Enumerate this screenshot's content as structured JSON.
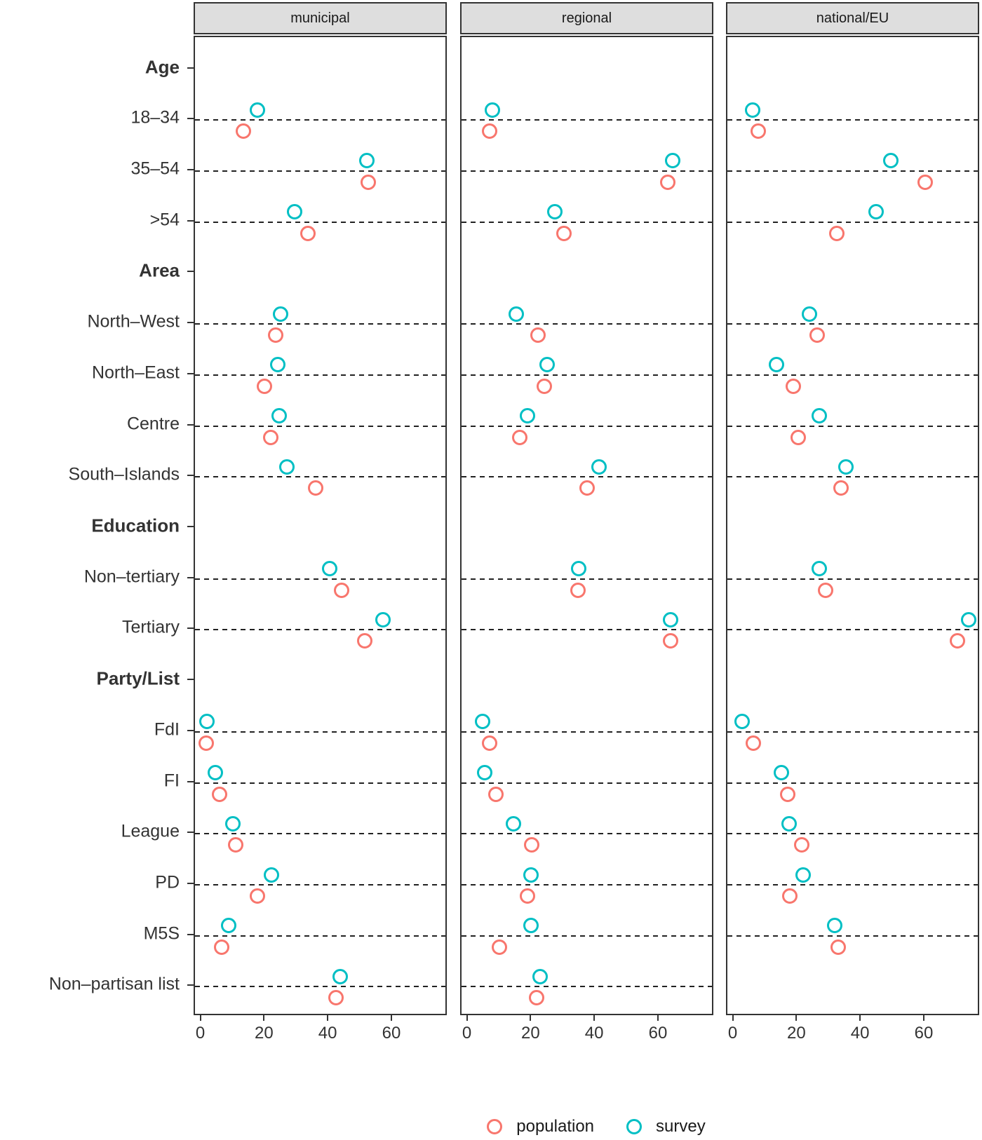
{
  "chart_data": {
    "type": "scatter",
    "title": "",
    "facets": [
      "municipal",
      "regional",
      "national/EU"
    ],
    "legend": [
      {
        "label": "population",
        "color": "#F8766D"
      },
      {
        "label": "survey",
        "color": "#00BFC4"
      }
    ],
    "legend_position": "bottom",
    "x_axis": {
      "ticks": [
        0,
        20,
        40,
        60
      ],
      "range": [
        -2.1,
        77.4
      ]
    },
    "grid": "dashed-horizontal-per-category",
    "rows": [
      {
        "label": "Age",
        "header": true
      },
      {
        "label": "18–34",
        "header": false,
        "population": [
          13.0,
          6.8,
          7.5
        ],
        "survey": [
          17.4,
          7.5,
          5.8
        ]
      },
      {
        "label": "35–54",
        "header": false,
        "population": [
          52.3,
          62.6,
          60.0
        ],
        "survey": [
          51.8,
          64.2,
          49.3
        ]
      },
      {
        "label": ">54",
        "header": false,
        "population": [
          33.3,
          30.0,
          32.2
        ],
        "survey": [
          29.2,
          27.1,
          44.6
        ]
      },
      {
        "label": "Area",
        "header": true
      },
      {
        "label": "North–West",
        "header": false,
        "population": [
          23.3,
          22.0,
          26.1
        ],
        "survey": [
          24.8,
          15.0,
          23.7
        ]
      },
      {
        "label": "North–East",
        "header": false,
        "population": [
          19.6,
          23.9,
          18.6
        ],
        "survey": [
          23.9,
          24.7,
          13.3
        ]
      },
      {
        "label": "Centre",
        "header": false,
        "population": [
          21.6,
          16.1,
          20.2
        ],
        "survey": [
          24.3,
          18.5,
          26.8
        ]
      },
      {
        "label": "South–Islands",
        "header": false,
        "population": [
          35.7,
          37.3,
          33.5
        ],
        "survey": [
          26.7,
          41.1,
          35.1
        ]
      },
      {
        "label": "Education",
        "header": true
      },
      {
        "label": "Non–tertiary",
        "header": false,
        "population": [
          43.9,
          34.4,
          28.8
        ],
        "survey": [
          40.1,
          34.6,
          26.7
        ]
      },
      {
        "label": "Tertiary",
        "header": false,
        "population": [
          51.3,
          63.6,
          70.1
        ],
        "survey": [
          56.9,
          63.6,
          73.7
        ]
      },
      {
        "label": "Party/List",
        "header": true
      },
      {
        "label": "FdI",
        "header": false,
        "population": [
          1.5,
          6.8,
          6.0
        ],
        "survey": [
          1.6,
          4.6,
          2.6
        ]
      },
      {
        "label": "FI",
        "header": false,
        "population": [
          5.6,
          8.6,
          16.9
        ],
        "survey": [
          4.3,
          5.2,
          14.8
        ]
      },
      {
        "label": "League",
        "header": false,
        "population": [
          10.7,
          20.0,
          21.3
        ],
        "survey": [
          9.7,
          14.3,
          17.3
        ]
      },
      {
        "label": "PD",
        "header": false,
        "population": [
          17.5,
          18.7,
          17.5
        ],
        "survey": [
          21.8,
          19.6,
          21.7
        ]
      },
      {
        "label": "M5S",
        "header": false,
        "population": [
          6.2,
          9.7,
          32.8
        ],
        "survey": [
          8.4,
          19.6,
          31.7
        ]
      },
      {
        "label": "Non–partisan list",
        "header": false,
        "population": [
          42.1,
          21.4,
          null
        ],
        "survey": [
          43.4,
          22.5,
          null
        ]
      }
    ]
  }
}
